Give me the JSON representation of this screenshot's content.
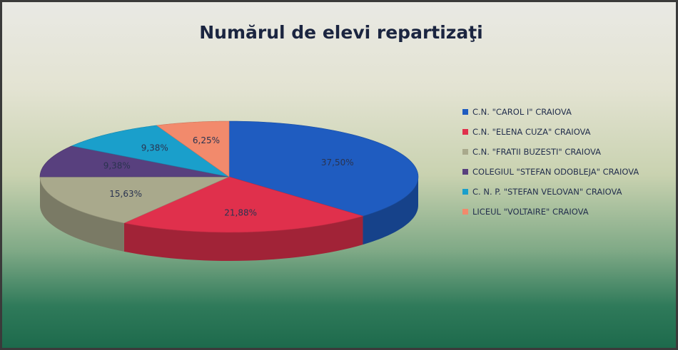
{
  "chart_data": {
    "type": "pie3d",
    "title": "Numărul de elevi repartizaţi",
    "categories": [
      "C.N. \"CAROL I\" CRAIOVA",
      "C.N. \"ELENA CUZA\" CRAIOVA",
      "C.N. \"FRATII BUZESTI\" CRAIOVA",
      "COLEGIUL \"STEFAN ODOBLEJA\" CRAIOVA",
      "C. N. P. \"STEFAN VELOVAN\" CRAIOVA",
      "LICEUL \"VOLTAIRE\" CRAIOVA"
    ],
    "values": [
      37.5,
      21.88,
      15.63,
      9.38,
      9.38,
      6.25
    ],
    "value_labels": [
      "37,50%",
      "21,88%",
      "15,63%",
      "9,38%",
      "9,38%",
      "6,25%"
    ],
    "colors": [
      "#1f5cc0",
      "#e0304c",
      "#a9a98c",
      "#58407e",
      "#1a9fcb",
      "#f28a6c"
    ],
    "legend": "right"
  }
}
